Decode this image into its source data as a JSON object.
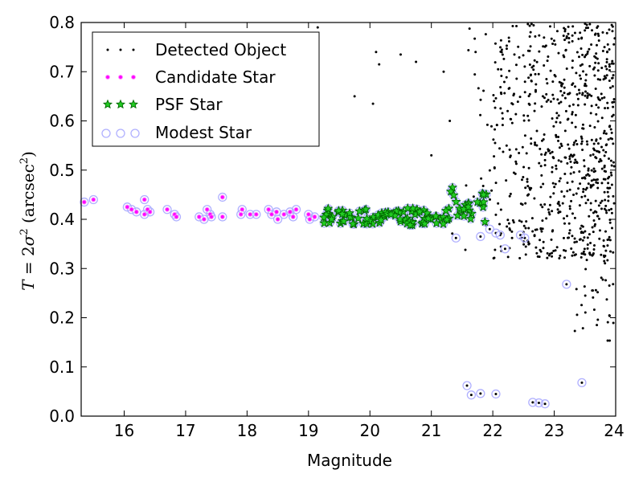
{
  "chart_data": {
    "type": "scatter",
    "xlabel": "Magnitude",
    "ylabel_parts": {
      "var": "T",
      "eq": " = 2",
      "sigma": "σ",
      "sq": "2",
      "unit_open": " (arcsec",
      "unit_sq": "2",
      "unit_close": ")"
    },
    "xlim": [
      15.3,
      24.0
    ],
    "ylim": [
      0.0,
      0.8
    ],
    "xticks": [
      16,
      17,
      18,
      19,
      20,
      21,
      22,
      23,
      24
    ],
    "yticks": [
      0.0,
      0.1,
      0.2,
      0.3,
      0.4,
      0.5,
      0.6,
      0.7,
      0.8
    ],
    "legend_placement": "top-left",
    "series": [
      {
        "name": "Detected Object",
        "marker": "dot",
        "color": "#000000"
      },
      {
        "name": "Candidate Star",
        "marker": "small-circle",
        "color": "#ff00ff"
      },
      {
        "name": "PSF Star",
        "marker": "star",
        "color": "#00aa00"
      },
      {
        "name": "Modest Star",
        "marker": "ring",
        "color": "#b0b0ff"
      }
    ],
    "candidate_points": [
      [
        15.35,
        0.435
      ],
      [
        15.5,
        0.44
      ],
      [
        16.05,
        0.425
      ],
      [
        16.12,
        0.42
      ],
      [
        16.2,
        0.415
      ],
      [
        16.33,
        0.44
      ],
      [
        16.33,
        0.41
      ],
      [
        16.38,
        0.42
      ],
      [
        16.42,
        0.415
      ],
      [
        16.7,
        0.42
      ],
      [
        16.82,
        0.41
      ],
      [
        16.85,
        0.405
      ],
      [
        17.22,
        0.405
      ],
      [
        17.3,
        0.4
      ],
      [
        17.35,
        0.42
      ],
      [
        17.4,
        0.41
      ],
      [
        17.42,
        0.405
      ],
      [
        17.6,
        0.445
      ],
      [
        17.6,
        0.405
      ],
      [
        17.9,
        0.41
      ],
      [
        17.92,
        0.42
      ],
      [
        18.05,
        0.41
      ],
      [
        18.15,
        0.41
      ],
      [
        18.35,
        0.42
      ],
      [
        18.4,
        0.41
      ],
      [
        18.48,
        0.415
      ],
      [
        18.5,
        0.4
      ],
      [
        18.6,
        0.41
      ],
      [
        18.7,
        0.415
      ],
      [
        18.75,
        0.405
      ],
      [
        18.8,
        0.42
      ],
      [
        19.0,
        0.41
      ],
      [
        19.02,
        0.4
      ],
      [
        19.1,
        0.405
      ]
    ],
    "modest_only_points": [
      [
        21.4,
        0.362
      ],
      [
        21.8,
        0.365
      ],
      [
        21.95,
        0.38
      ],
      [
        22.05,
        0.372
      ],
      [
        22.12,
        0.368
      ],
      [
        22.2,
        0.34
      ],
      [
        22.45,
        0.368
      ],
      [
        22.52,
        0.362
      ],
      [
        23.2,
        0.268
      ],
      [
        21.58,
        0.062
      ],
      [
        21.65,
        0.043
      ],
      [
        21.8,
        0.046
      ],
      [
        22.05,
        0.045
      ],
      [
        22.65,
        0.028
      ],
      [
        22.75,
        0.027
      ],
      [
        22.85,
        0.025
      ],
      [
        23.45,
        0.068
      ]
    ]
  }
}
